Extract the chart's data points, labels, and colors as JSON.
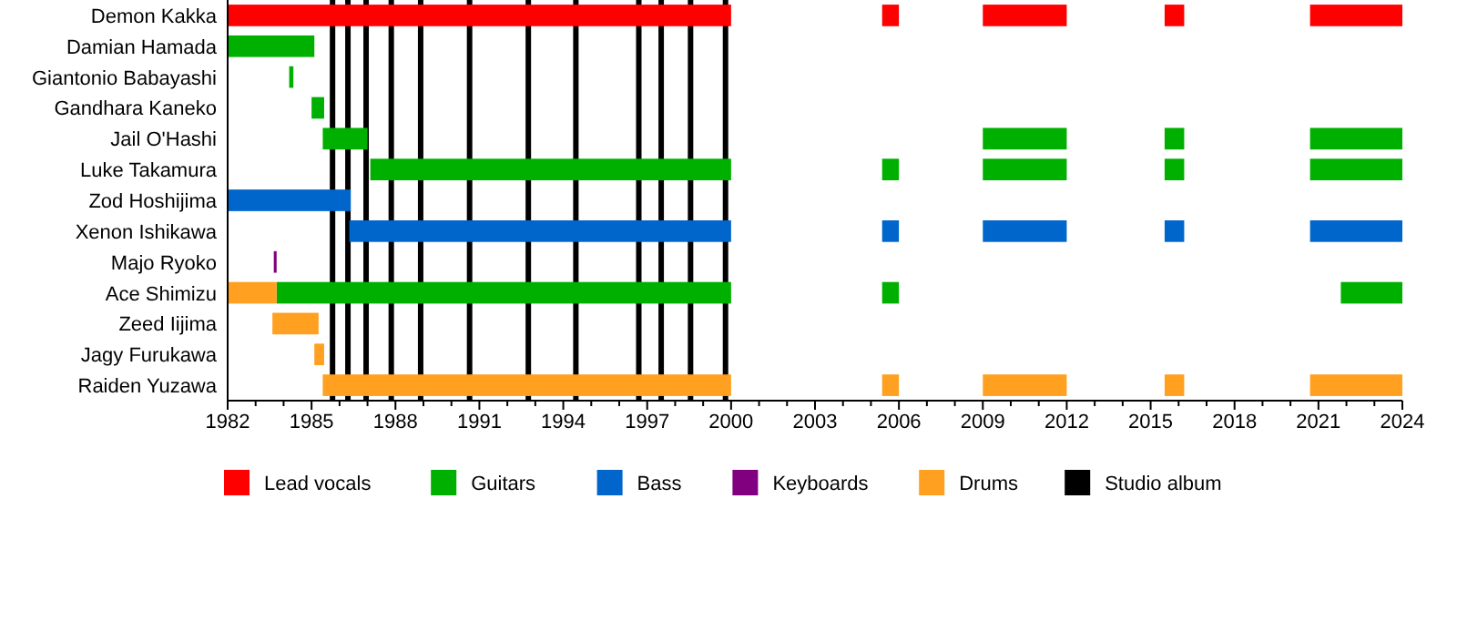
{
  "chart_data": {
    "type": "bar",
    "orientation": "horizontal",
    "legend": "bottom",
    "grid": false,
    "categories": [
      "Demon Kakka",
      "Damian Hamada",
      "Giantonio Babayashi",
      "Gandhara Kaneko",
      "Jail O'Hashi",
      "Luke Takamura",
      "Zod Hoshijima",
      "Xenon Ishikawa",
      "Majo Ryoko",
      "Ace Shimizu",
      "Zeed Iijima",
      "Jagy Furukawa",
      "Raiden Yuzawa"
    ],
    "xlim": [
      1982,
      2024
    ],
    "xticks": [
      1982,
      {
        "value": 1983,
        "label": null
      },
      {
        "value": 1984,
        "label": null
      },
      1985,
      {
        "value": 1986,
        "label": null
      },
      {
        "value": 1987,
        "label": null
      },
      1988,
      {
        "value": 1989,
        "label": null
      },
      {
        "value": 1990,
        "label": null
      },
      1991,
      {
        "value": 1992,
        "label": null
      },
      {
        "value": 1993,
        "label": null
      },
      1994,
      {
        "value": 1995,
        "label": null
      },
      {
        "value": 1996,
        "label": null
      },
      1997,
      {
        "value": 1998,
        "label": null
      },
      {
        "value": 1999,
        "label": null
      },
      2000,
      {
        "value": 2001,
        "label": null
      },
      {
        "value": 2002,
        "label": null
      },
      2003,
      {
        "value": 2004,
        "label": null
      },
      {
        "value": 2005,
        "label": null
      },
      2006,
      {
        "value": 2007,
        "label": null
      },
      {
        "value": 2008,
        "label": null
      },
      2009,
      {
        "value": 2010,
        "label": null
      },
      {
        "value": 2011,
        "label": null
      },
      2012,
      {
        "value": 2013,
        "label": null
      },
      {
        "value": 2014,
        "label": null
      },
      2015,
      {
        "value": 2016,
        "label": null
      },
      {
        "value": 2017,
        "label": null
      },
      2018,
      {
        "value": 2019,
        "label": null
      },
      {
        "value": 2020,
        "label": null
      },
      2021,
      {
        "value": 2022,
        "label": null
      },
      {
        "value": 2023,
        "label": null
      },
      2024
    ],
    "series": [
      {
        "name": "Lead vocals",
        "color": "#ff0000",
        "base": [
          1982,
          null,
          null,
          null,
          null,
          null,
          null,
          null,
          null,
          null,
          null,
          null,
          null
        ],
        "values": [
          18,
          null,
          null,
          null,
          null,
          null,
          null,
          null,
          null,
          null,
          null,
          null,
          null
        ]
      },
      {
        "name": "Guitars",
        "color": "#00b000",
        "base": [
          null,
          1982,
          1984.2,
          1985,
          1985.4,
          1987.1,
          null,
          null,
          null,
          1983.75,
          null,
          null,
          null
        ],
        "values": [
          null,
          3.1,
          0.15,
          0.45,
          1.6,
          12.9,
          null,
          null,
          null,
          16.25,
          null,
          null,
          null
        ]
      },
      {
        "name": "Bass",
        "color": "#0066cc",
        "base": [
          null,
          null,
          null,
          null,
          null,
          null,
          1982,
          1986.35,
          null,
          null,
          null,
          null,
          null
        ],
        "values": [
          null,
          null,
          null,
          null,
          null,
          null,
          4.4,
          13.65,
          null,
          null,
          null,
          null,
          null
        ]
      },
      {
        "name": "Keyboards",
        "color": "#800080",
        "base": [
          null,
          null,
          null,
          null,
          null,
          null,
          null,
          null,
          1983.65,
          null,
          null,
          null,
          null
        ],
        "values": [
          null,
          null,
          null,
          null,
          null,
          null,
          null,
          null,
          0.1,
          null,
          null,
          null,
          null
        ]
      },
      {
        "name": "Drums",
        "color": "#ffa020",
        "base": [
          null,
          null,
          null,
          null,
          null,
          null,
          null,
          null,
          null,
          1982,
          1983.6,
          1985.1,
          1985.4
        ],
        "values": [
          null,
          null,
          null,
          null,
          null,
          null,
          null,
          null,
          null,
          1.75,
          1.65,
          0.35,
          14.6
        ]
      },
      {
        "colors": [
          "#ff0000",
          null,
          null,
          null,
          null,
          "#00b000",
          null,
          "#0066cc",
          null,
          "#00b000",
          null,
          null,
          "#ffa020"
        ],
        "base": [
          2005.4,
          null,
          null,
          null,
          null,
          2005.4,
          null,
          2005.4,
          null,
          2005.4,
          null,
          null,
          2005.4
        ],
        "values": [
          0.6,
          null,
          null,
          null,
          null,
          0.6,
          null,
          0.6,
          null,
          0.6,
          null,
          null,
          0.6
        ]
      },
      {
        "colors": [
          "#ff0000",
          null,
          null,
          null,
          "#00b000",
          "#00b000",
          null,
          "#0066cc",
          null,
          null,
          null,
          null,
          "#ffa020"
        ],
        "base": [
          2009,
          null,
          null,
          null,
          2009,
          2009,
          null,
          2009,
          null,
          null,
          null,
          null,
          2009
        ],
        "values": [
          3,
          null,
          null,
          null,
          3,
          3,
          null,
          3,
          null,
          null,
          null,
          null,
          3
        ]
      },
      {
        "colors": [
          "#ff0000",
          null,
          null,
          null,
          "#00b000",
          "#00b000",
          null,
          "#0066cc",
          null,
          null,
          null,
          null,
          "#ffa020"
        ],
        "base": [
          2015.5,
          null,
          null,
          null,
          2015.5,
          2015.5,
          null,
          2015.5,
          null,
          null,
          null,
          null,
          2015.5
        ],
        "values": [
          0.7,
          null,
          null,
          null,
          0.7,
          0.7,
          null,
          0.7,
          null,
          null,
          null,
          null,
          0.7
        ]
      },
      {
        "colors": [
          "#ff0000",
          null,
          null,
          null,
          "#00b000",
          "#00b000",
          null,
          "#0066cc",
          null,
          "#00b000",
          null,
          null,
          "#ffa020"
        ],
        "base": [
          2020.7,
          null,
          null,
          null,
          2020.7,
          2020.7,
          null,
          2020.7,
          null,
          2021.8,
          null,
          null,
          2020.7
        ],
        "values": [
          3.3,
          null,
          null,
          null,
          3.3,
          3.3,
          null,
          3.3,
          null,
          2.2,
          null,
          null,
          3.3
        ]
      }
    ],
    "ref_lines": [
      {
        "axis": "x",
        "value": 1985.75,
        "label": "Studio album",
        "color": "#000000"
      },
      {
        "axis": "x",
        "value": 1986.3,
        "color": "#000000"
      },
      {
        "axis": "x",
        "value": 1986.95,
        "color": "#000000"
      },
      {
        "axis": "x",
        "value": 1987.85,
        "color": "#000000"
      },
      {
        "axis": "x",
        "value": 1988.9,
        "color": "#000000"
      },
      {
        "axis": "x",
        "value": 1990.65,
        "color": "#000000"
      },
      {
        "axis": "x",
        "value": 1992.75,
        "color": "#000000"
      },
      {
        "axis": "x",
        "value": 1994.45,
        "color": "#000000"
      },
      {
        "axis": "x",
        "value": 1996.7,
        "color": "#000000"
      },
      {
        "axis": "x",
        "value": 1997.5,
        "color": "#000000"
      },
      {
        "axis": "x",
        "value": 1998.55,
        "color": "#000000"
      },
      {
        "axis": "x",
        "value": 1999.8,
        "color": "#000000"
      }
    ]
  }
}
